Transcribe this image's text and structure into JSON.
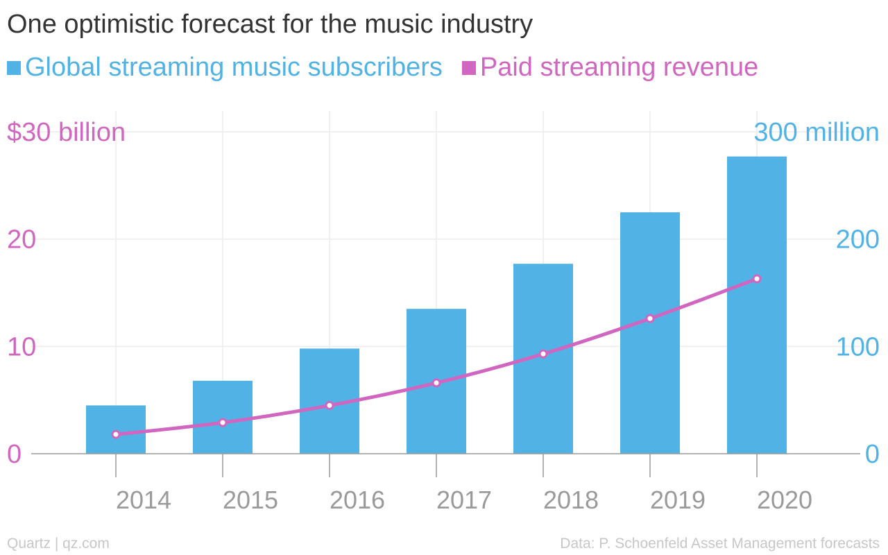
{
  "chart_data": {
    "type": "bar",
    "title": "One optimistic forecast for the music industry",
    "categories": [
      "2014",
      "2015",
      "2016",
      "2017",
      "2018",
      "2019",
      "2020"
    ],
    "series": [
      {
        "name": "Global streaming music subscribers",
        "type": "bar",
        "axis": "right",
        "color": "#51b2e5",
        "values": [
          45,
          68,
          98,
          135,
          177,
          225,
          277
        ]
      },
      {
        "name": "Paid streaming revenue",
        "type": "line",
        "axis": "left",
        "color": "#d066c0",
        "values": [
          1.8,
          2.9,
          4.5,
          6.6,
          9.3,
          12.6,
          16.3
        ]
      }
    ],
    "left_axis": {
      "ylim": [
        0,
        30
      ],
      "ticks": [
        0,
        10,
        20,
        30
      ],
      "tick_labels": [
        "0",
        "10",
        "20",
        "$30 billion"
      ],
      "color": "#d066c0"
    },
    "right_axis": {
      "ylim": [
        0,
        300
      ],
      "ticks": [
        0,
        100,
        200,
        300
      ],
      "tick_labels": [
        "0",
        "100",
        "200",
        "300 million"
      ],
      "color": "#51b2e5"
    },
    "grid": true,
    "legend_position": "top-left"
  },
  "footer": {
    "source_left": "Quartz | qz.com",
    "source_right": "Data: P. Schoenfeld Asset Management forecasts"
  }
}
